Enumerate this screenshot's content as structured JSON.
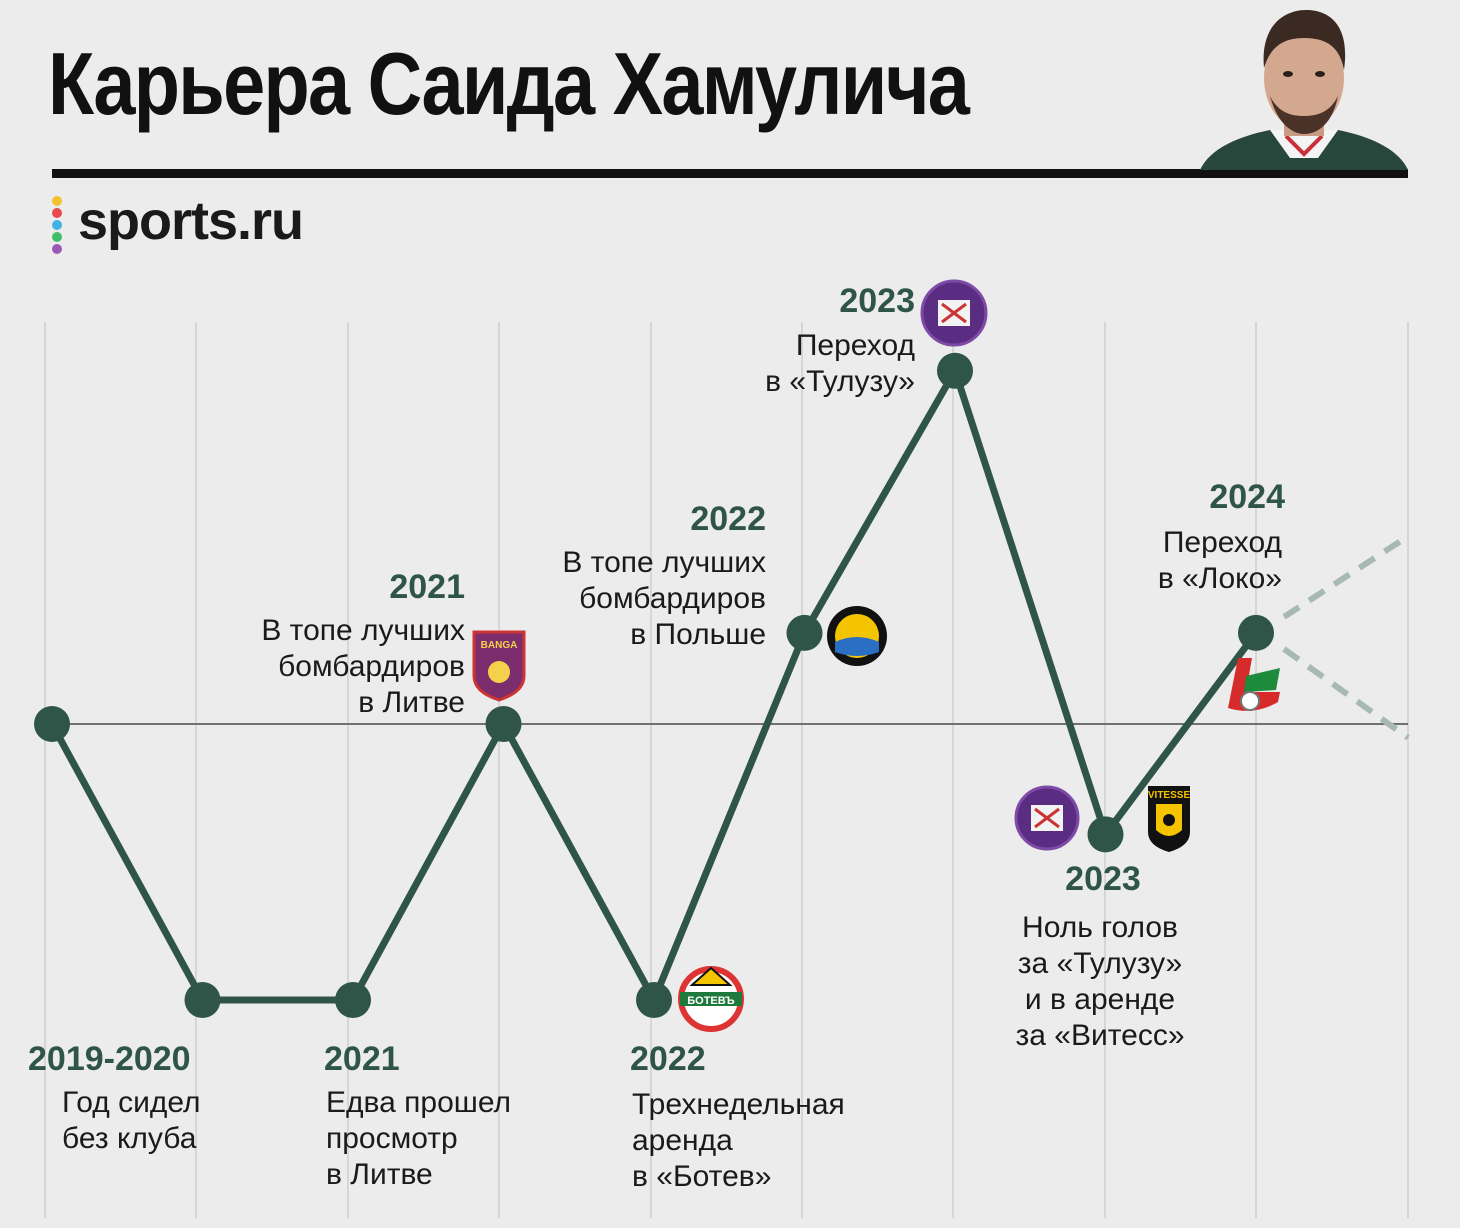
{
  "header": {
    "title": "Карьера Саида Хамулича",
    "brand": "sports.ru"
  },
  "colors": {
    "background": "#ececec",
    "line": "#2f5549",
    "year_text": "#2f5549",
    "baseline": "#707070",
    "projection": "#a8b8b3"
  },
  "portrait": {
    "icon": "player-portrait"
  },
  "chart_data": {
    "type": "line",
    "title": "Карьера Саида Хамулича",
    "xlabel": "",
    "ylabel": "",
    "x_axis_shown": false,
    "y_axis_shown": false,
    "grid": "vertical",
    "baseline_level": 0,
    "series": [
      {
        "points": [
          {
            "x": 0,
            "level": 0
          },
          {
            "x": 1,
            "level": -1
          },
          {
            "x": 2,
            "level": -1
          },
          {
            "x": 3,
            "level": 0
          },
          {
            "x": 4,
            "level": -1
          },
          {
            "x": 5,
            "level": 0.33
          },
          {
            "x": 6,
            "level": 1.28
          },
          {
            "x": 7,
            "level": -0.4
          },
          {
            "x": 8,
            "level": 0.33
          }
        ]
      }
    ],
    "projection": {
      "style": "dashed",
      "from_x": 8,
      "upper_level": 0.68,
      "lower_level": -0.05
    },
    "annotations": [
      {
        "year": "2019-2020",
        "text": [
          "Год сидел",
          "без клуба"
        ]
      },
      {
        "year": "2021",
        "text": [
          "Едва прошел",
          "просмотр",
          "в Литве"
        ]
      },
      {
        "year": "2021",
        "text": [
          "В топе лучших",
          "бомбардиров",
          "в Литве"
        ]
      },
      {
        "year": "2022",
        "text": [
          "Трехнедельная",
          "аренда",
          "в «Ботев»"
        ]
      },
      {
        "year": "2022",
        "text": [
          "В топе лучших",
          "бомбардиров",
          "в Польше"
        ]
      },
      {
        "year": "2023",
        "text": [
          "Переход",
          "в «Тулузу»"
        ]
      },
      {
        "year": "2023",
        "text": [
          "Ноль голов",
          "за «Тулузу»",
          "и в аренде",
          "за «Витесс»"
        ]
      },
      {
        "year": "2024",
        "text": [
          "Переход",
          "в «Локо»"
        ]
      }
    ],
    "logos": [
      {
        "club": "Banga",
        "label": "BANGA"
      },
      {
        "club": "Botev",
        "label": "БОТЕВЪ"
      },
      {
        "club": "Stal Mielec",
        "label": ""
      },
      {
        "club": "Toulouse",
        "label": ""
      },
      {
        "club": "Toulouse",
        "label": ""
      },
      {
        "club": "Vitesse",
        "label": "VITESSE"
      },
      {
        "club": "Lokomotiv",
        "label": ""
      }
    ]
  }
}
